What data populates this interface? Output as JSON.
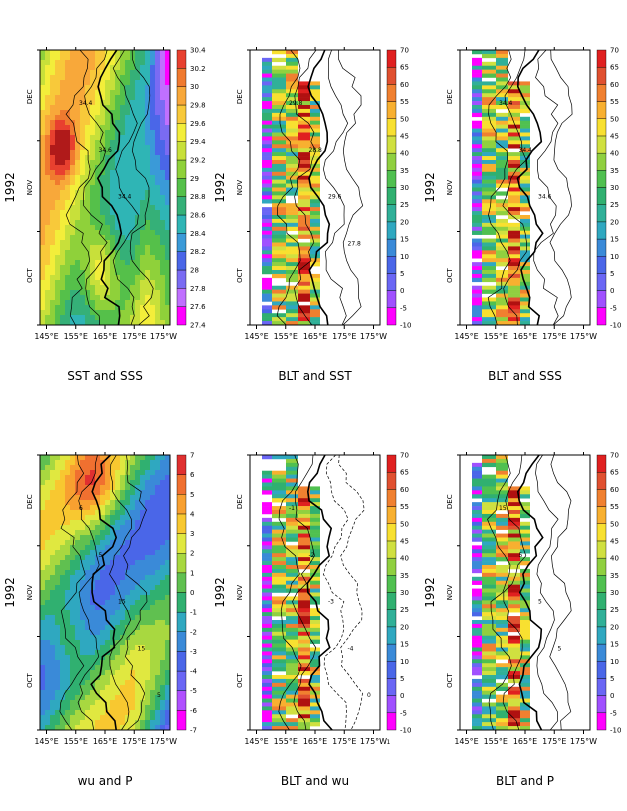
{
  "figure": {
    "year_label": "1992",
    "month_labels": [
      "OCT",
      "NOV",
      "DEC"
    ],
    "x_tick_labels": [
      "145°E",
      "155°E",
      "165°E",
      "175°E",
      "175°W"
    ]
  },
  "colorbars": {
    "sst": [
      "27.4",
      "27.6",
      "27.8",
      "28",
      "28.2",
      "28.4",
      "28.6",
      "28.8",
      "29",
      "29.2",
      "29.4",
      "29.6",
      "29.8",
      "30",
      "30.2",
      "30.4"
    ],
    "blt": [
      "-10",
      "-5",
      "0",
      "5",
      "10",
      "15",
      "20",
      "25",
      "30",
      "35",
      "40",
      "45",
      "50",
      "55",
      "60",
      "65",
      "70"
    ],
    "wu": [
      "-7",
      "-6",
      "-5",
      "-4",
      "-3",
      "-2",
      "-1",
      "0",
      "1",
      "2",
      "3",
      "4",
      "5",
      "6",
      "7"
    ]
  },
  "colors": {
    "sst": [
      "#ff00ff",
      "#c070ff",
      "#7a6bf3",
      "#4a66e8",
      "#3a9ad8",
      "#2fb5b5",
      "#35b078",
      "#55c04a",
      "#8fd13a",
      "#c8e03a",
      "#f3ee3a",
      "#f8c93a",
      "#f8a83a",
      "#f07a2f",
      "#e8402f",
      "#b01a1a"
    ],
    "blt": [
      "#ff00ff",
      "#a050ff",
      "#6a66f5",
      "#4a66e8",
      "#3a8ad8",
      "#2fa8c0",
      "#30b098",
      "#30b070",
      "#50c050",
      "#90d040",
      "#d0e040",
      "#f8e030",
      "#f8b030",
      "#f08030",
      "#e05030",
      "#e02020",
      "#b01010"
    ],
    "wu": [
      "#ff00ff",
      "#b050ff",
      "#6a66f5",
      "#4a66e8",
      "#3a8ad8",
      "#2fa8c0",
      "#30b070",
      "#60c050",
      "#a8d840",
      "#e0e840",
      "#f8c830",
      "#f8a030",
      "#f07030",
      "#e03030"
    ]
  },
  "chart_data": [
    {
      "type": "heatmap",
      "panel": "SST and SSS",
      "title": "SST and SSS",
      "xlabel": "",
      "ylabel": "1992",
      "xlim": [
        "145°E",
        "175°W"
      ],
      "color_range": [
        27.4,
        30.4
      ],
      "contours": "SSS",
      "contour_labels": [
        "34.4",
        "34.6",
        "34.4"
      ]
    },
    {
      "type": "heatmap",
      "panel": "BLT and SST",
      "title": "BLT and SST",
      "xlabel": "",
      "ylabel": "1992",
      "xlim": [
        "145°E",
        "175°W"
      ],
      "color_range": [
        -10,
        70
      ],
      "contours": "SST",
      "contour_labels": [
        "29.8",
        "28.8",
        "29.6",
        "27.8"
      ]
    },
    {
      "type": "heatmap",
      "panel": "BLT and SSS",
      "title": "BLT and SSS",
      "xlabel": "",
      "ylabel": "1992",
      "xlim": [
        "145°E",
        "175°W"
      ],
      "color_range": [
        -10,
        70
      ],
      "contours": "SSS",
      "contour_labels": [
        "34.4",
        "34.4",
        "34.6"
      ]
    },
    {
      "type": "heatmap",
      "panel": "wu and P",
      "title": "wu and P",
      "xlabel": "",
      "ylabel": "1992",
      "xlim": [
        "145°E",
        "175°W"
      ],
      "color_range": [
        -7,
        7
      ],
      "contours": "P",
      "contour_labels": [
        "6",
        "5",
        "15",
        "15",
        "5"
      ]
    },
    {
      "type": "heatmap",
      "panel": "BLT and wu",
      "title": "BLT and wu",
      "xlabel": "",
      "ylabel": "1992",
      "xlim": [
        "145°E",
        "175°W"
      ],
      "color_range": [
        -10,
        70
      ],
      "contours": "wu",
      "contour_labels": [
        "-1",
        "-2",
        "-3",
        "-4",
        "0",
        "1"
      ]
    },
    {
      "type": "heatmap",
      "panel": "BLT and P",
      "title": "BLT and P",
      "xlabel": "",
      "ylabel": "1992",
      "xlim": [
        "145°E",
        "175°W"
      ],
      "color_range": [
        -10,
        70
      ],
      "contours": "P",
      "contour_labels": [
        "15",
        "5",
        "5",
        "5"
      ]
    }
  ]
}
